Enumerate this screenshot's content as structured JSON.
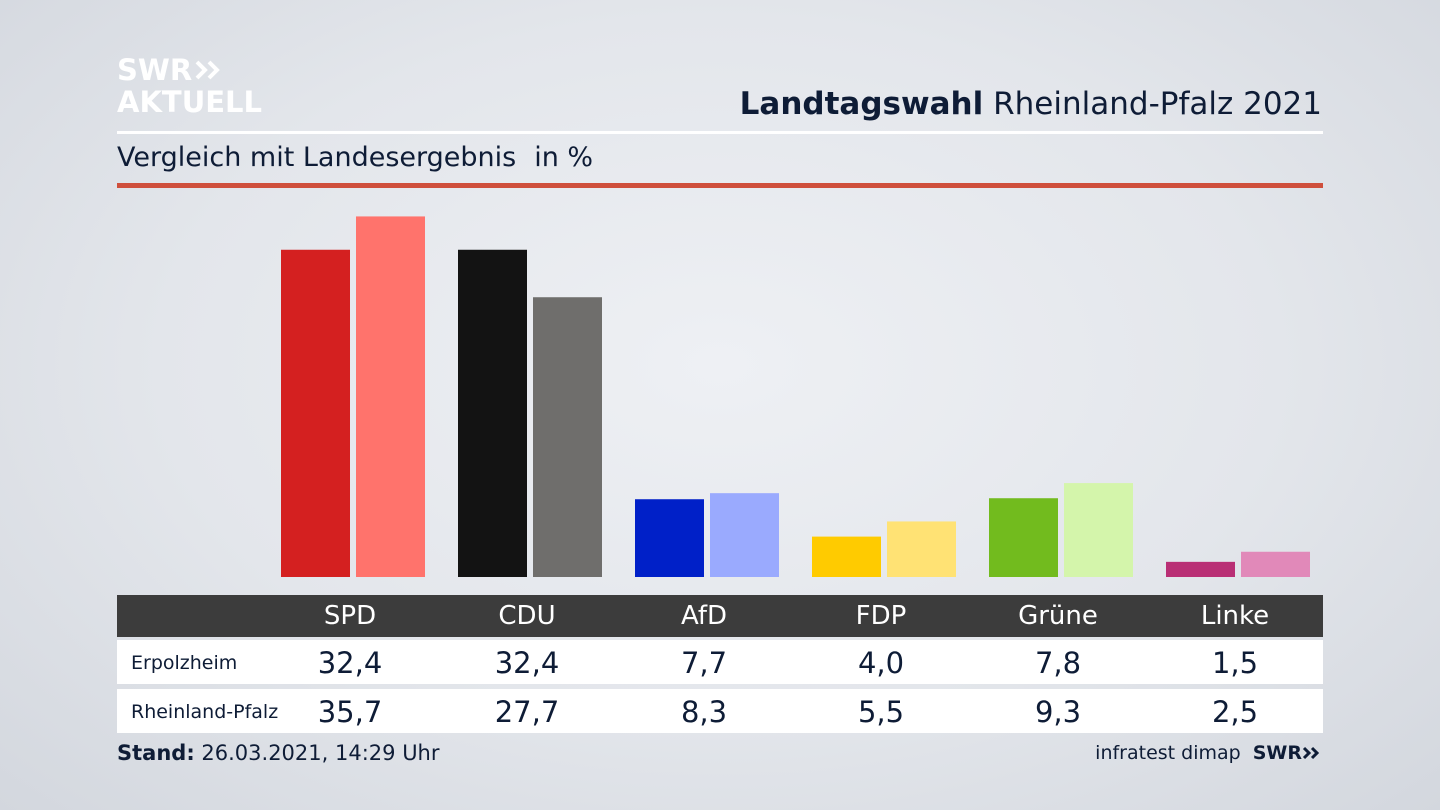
{
  "brand": {
    "line1": "SWR",
    "line2": "AKTUELL"
  },
  "header": {
    "title_bold": "Landtagswahl",
    "title_rest": "Rheinland-Pfalz 2021"
  },
  "subtitle": {
    "text": "Vergleich mit Landesergebnis",
    "unit": "in %"
  },
  "colors": {
    "accent_rule": "#cf4f3c",
    "table_header": "#3c3c3c",
    "text": "#0e1c36"
  },
  "chart_data": {
    "type": "bar",
    "categories": [
      "SPD",
      "CDU",
      "AfD",
      "FDP",
      "Grüne",
      "Linke"
    ],
    "series": [
      {
        "name": "Erpolzheim",
        "values": [
          32.4,
          32.4,
          7.7,
          4.0,
          7.8,
          1.5
        ],
        "colors": [
          "#d42020",
          "#131313",
          "#0020c8",
          "#ffcb00",
          "#72bb1e",
          "#b92f75"
        ]
      },
      {
        "name": "Rheinland-Pfalz",
        "values": [
          35.7,
          27.7,
          8.3,
          5.5,
          9.3,
          2.5
        ],
        "colors": [
          "#ff736c",
          "#6f6e6c",
          "#9aaafe",
          "#ffe274",
          "#d4f5ab",
          "#e189b9"
        ]
      }
    ],
    "ylim": [
      0,
      36
    ],
    "value_labels": {
      "Erpolzheim": [
        "32,4",
        "32,4",
        "7,7",
        "4,0",
        "7,8",
        "1,5"
      ],
      "Rheinland-Pfalz": [
        "35,7",
        "27,7",
        "8,3",
        "5,5",
        "9,3",
        "2,5"
      ]
    }
  },
  "footer": {
    "stand_label": "Stand:",
    "stand_value": "26.03.2021, 14:29 Uhr",
    "source": "infratest dimap",
    "source_brand": "SWR"
  }
}
